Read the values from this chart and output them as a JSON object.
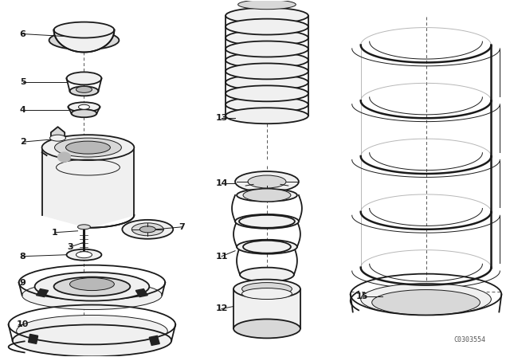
{
  "background_color": "#ffffff",
  "line_color": "#1a1a1a",
  "fig_width": 6.4,
  "fig_height": 4.48,
  "dpi": 100,
  "watermark": "C0303554",
  "lw_main": 1.3,
  "lw_thin": 0.7,
  "lw_thick": 1.8,
  "face_light": "#f0f0f0",
  "face_mid": "#d8d8d8",
  "face_dark": "#b8b8b8"
}
